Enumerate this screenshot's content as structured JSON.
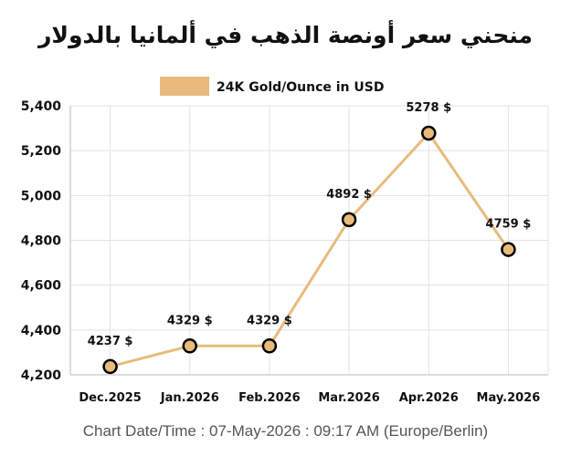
{
  "chart_data": {
    "type": "line",
    "title": "منحني سعر أونصة الذهب في ألمانيا بالدولار",
    "categories": [
      "Dec.2025",
      "Jan.2026",
      "Feb.2026",
      "Mar.2026",
      "Apr.2026",
      "May.2026"
    ],
    "series": [
      {
        "name": "24K Gold/Ounce in USD",
        "values": [
          4237,
          4329,
          4329,
          4892,
          5278,
          4759
        ],
        "labels": [
          "4237 $",
          "4329 $",
          "4329 $",
          "4892 $",
          "5278 $",
          "4759 $"
        ],
        "color": "#e8bb7c"
      }
    ],
    "ylim": [
      4200,
      5400
    ],
    "yticks": [
      4200,
      4400,
      4600,
      4800,
      5000,
      5200,
      5400
    ],
    "ytick_labels": [
      "4,200",
      "4,400",
      "4,600",
      "4,800",
      "5,000",
      "5,200",
      "5,400"
    ],
    "grid": true,
    "legend": "top-center"
  },
  "footer": {
    "text": "Chart Date/Time : 07-May-2026 : 09:17 AM (Europe/Berlin)"
  }
}
